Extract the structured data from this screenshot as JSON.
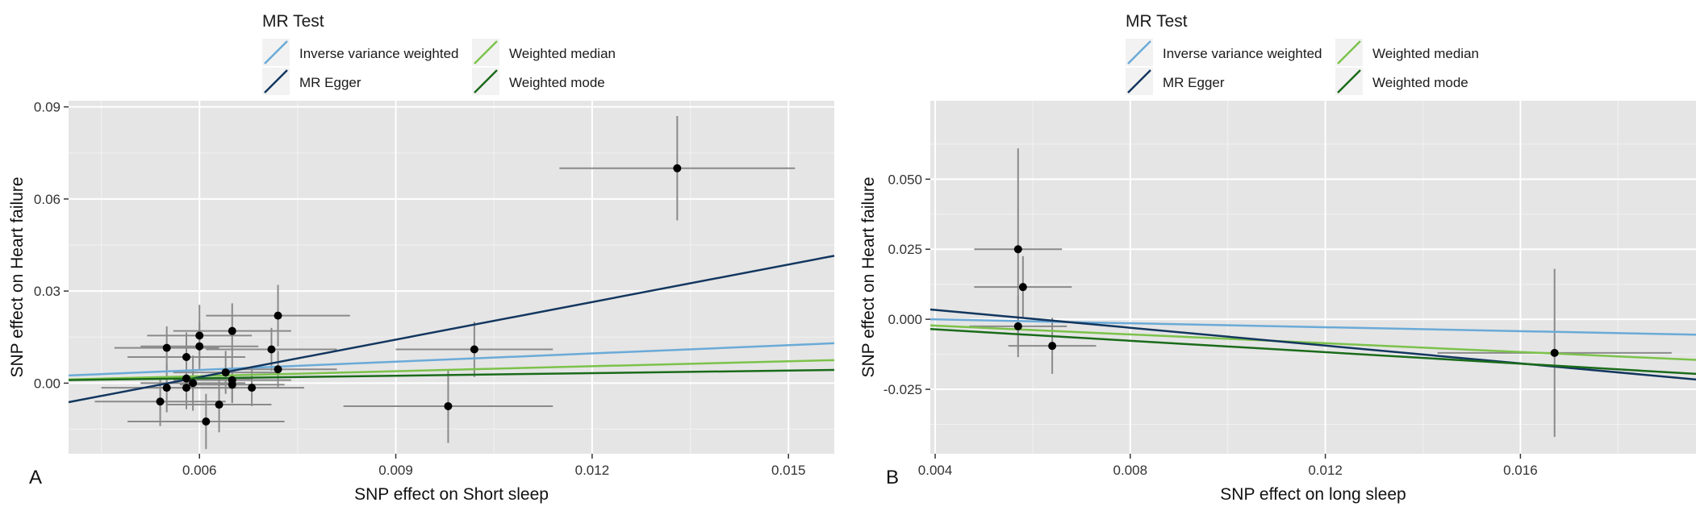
{
  "chart_data": [
    {
      "type": "scatter",
      "panel_label": "A",
      "xlabel": "SNP effect on Short sleep",
      "ylabel": "SNP effect on Heart failure",
      "xlim": [
        0.004,
        0.0157
      ],
      "ylim": [
        -0.023,
        0.092
      ],
      "xticks": [
        0.006,
        0.009,
        0.012,
        0.015
      ],
      "xtick_labels": [
        "0.006",
        "0.009",
        "0.012",
        "0.015"
      ],
      "yticks": [
        0.0,
        0.03,
        0.06,
        0.09
      ],
      "ytick_labels": [
        "0.00",
        "0.03",
        "0.06",
        "0.09"
      ],
      "grid": true,
      "legend": {
        "title": "MR Test",
        "position": "top",
        "entries": [
          "Inverse variance weighted",
          "Weighted median",
          "MR Egger",
          "Weighted mode"
        ]
      },
      "points": [
        {
          "x": 0.0133,
          "y": 0.07,
          "xerr": 0.0018,
          "yerr": 0.017
        },
        {
          "x": 0.0102,
          "y": 0.011,
          "xerr": 0.0012,
          "yerr": 0.009
        },
        {
          "x": 0.0098,
          "y": -0.0075,
          "xerr": 0.0016,
          "yerr": 0.012
        },
        {
          "x": 0.0072,
          "y": 0.022,
          "xerr": 0.0011,
          "yerr": 0.01
        },
        {
          "x": 0.0071,
          "y": 0.011,
          "xerr": 0.001,
          "yerr": 0.007
        },
        {
          "x": 0.0072,
          "y": 0.0045,
          "xerr": 0.0009,
          "yerr": 0.006
        },
        {
          "x": 0.0065,
          "y": 0.017,
          "xerr": 0.0009,
          "yerr": 0.009
        },
        {
          "x": 0.006,
          "y": 0.0155,
          "xerr": 0.0008,
          "yerr": 0.01
        },
        {
          "x": 0.006,
          "y": 0.012,
          "xerr": 0.0009,
          "yerr": 0.008
        },
        {
          "x": 0.0055,
          "y": 0.0115,
          "xerr": 0.0008,
          "yerr": 0.007
        },
        {
          "x": 0.0058,
          "y": 0.0085,
          "xerr": 0.0009,
          "yerr": 0.008
        },
        {
          "x": 0.0064,
          "y": 0.0035,
          "xerr": 0.0008,
          "yerr": 0.007
        },
        {
          "x": 0.0058,
          "y": 0.0015,
          "xerr": 0.001,
          "yerr": 0.008
        },
        {
          "x": 0.0059,
          "y": 0.0,
          "xerr": 0.0008,
          "yerr": 0.009
        },
        {
          "x": 0.0065,
          "y": 0.001,
          "xerr": 0.0009,
          "yerr": 0.007
        },
        {
          "x": 0.0065,
          "y": -0.0005,
          "xerr": 0.0008,
          "yerr": 0.006
        },
        {
          "x": 0.0055,
          "y": -0.0015,
          "xerr": 0.001,
          "yerr": 0.008
        },
        {
          "x": 0.0058,
          "y": -0.0015,
          "xerr": 0.0008,
          "yerr": 0.007
        },
        {
          "x": 0.0068,
          "y": -0.0015,
          "xerr": 0.0008,
          "yerr": 0.006
        },
        {
          "x": 0.0054,
          "y": -0.006,
          "xerr": 0.001,
          "yerr": 0.008
        },
        {
          "x": 0.0063,
          "y": -0.007,
          "xerr": 0.0008,
          "yerr": 0.009
        },
        {
          "x": 0.0061,
          "y": -0.0125,
          "xerr": 0.0012,
          "yerr": 0.009
        }
      ],
      "series": [
        {
          "name": "Inverse variance weighted",
          "color": "#6aaad8",
          "x": [
            0.004,
            0.0157
          ],
          "y": [
            0.0025,
            0.013
          ]
        },
        {
          "name": "Weighted median",
          "color": "#7cc24a",
          "x": [
            0.004,
            0.0157
          ],
          "y": [
            0.0012,
            0.0075
          ]
        },
        {
          "name": "MR Egger",
          "color": "#12365f",
          "x": [
            0.004,
            0.0157
          ],
          "y": [
            -0.0062,
            0.0415
          ]
        },
        {
          "name": "Weighted mode",
          "color": "#1a6b1a",
          "x": [
            0.004,
            0.0157
          ],
          "y": [
            0.001,
            0.0043
          ]
        }
      ]
    },
    {
      "type": "scatter",
      "panel_label": "B",
      "xlabel": "SNP effect on long sleep",
      "ylabel": "SNP effect on Heart failure",
      "xlim": [
        0.0039,
        0.0196
      ],
      "ylim": [
        -0.048,
        0.078
      ],
      "xticks": [
        0.004,
        0.008,
        0.012,
        0.016
      ],
      "xtick_labels": [
        "0.004",
        "0.008",
        "0.012",
        "0.016"
      ],
      "yticks": [
        -0.025,
        0.0,
        0.025,
        0.05
      ],
      "ytick_labels": [
        "-0.025",
        "0.000",
        "0.025",
        "0.050"
      ],
      "grid": true,
      "legend": {
        "title": "MR Test",
        "position": "top",
        "entries": [
          "Inverse variance weighted",
          "Weighted median",
          "MR Egger",
          "Weighted mode"
        ]
      },
      "points": [
        {
          "x": 0.0057,
          "y": 0.025,
          "xerr": 0.0009,
          "yerr": 0.036
        },
        {
          "x": 0.0058,
          "y": 0.0115,
          "xerr": 0.001,
          "yerr": 0.011
        },
        {
          "x": 0.0057,
          "y": -0.0025,
          "xerr": 0.001,
          "yerr": 0.011
        },
        {
          "x": 0.0064,
          "y": -0.0095,
          "xerr": 0.0009,
          "yerr": 0.01
        },
        {
          "x": 0.0167,
          "y": -0.012,
          "xerr": 0.0024,
          "yerr": 0.03
        }
      ],
      "series": [
        {
          "name": "Inverse variance weighted",
          "color": "#6aaad8",
          "x": [
            0.0039,
            0.0196
          ],
          "y": [
            0.0,
            -0.0055
          ]
        },
        {
          "name": "Weighted median",
          "color": "#7cc24a",
          "x": [
            0.0039,
            0.0196
          ],
          "y": [
            -0.0022,
            -0.0145
          ]
        },
        {
          "name": "MR Egger",
          "color": "#12365f",
          "x": [
            0.0039,
            0.0196
          ],
          "y": [
            0.0035,
            -0.0215
          ]
        },
        {
          "name": "Weighted mode",
          "color": "#1a6b1a",
          "x": [
            0.0039,
            0.0196
          ],
          "y": [
            -0.0035,
            -0.0195
          ]
        }
      ]
    }
  ]
}
